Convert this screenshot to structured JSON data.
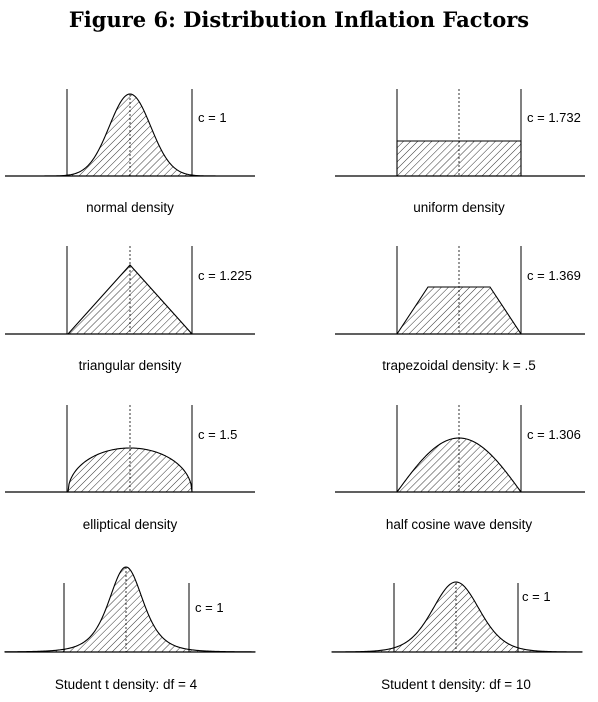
{
  "title": "Figure 6: Distribution Inflation Factors",
  "panels": [
    {
      "id": "normal",
      "type": "normal",
      "caption": "normal density",
      "c_label": "c = 1"
    },
    {
      "id": "uniform",
      "type": "uniform",
      "caption": "uniform density",
      "c_label": "c = 1.732"
    },
    {
      "id": "triangular",
      "type": "triangular",
      "caption": "triangular density",
      "c_label": "c = 1.225"
    },
    {
      "id": "trapezoidal",
      "type": "trapezoidal",
      "caption": "trapezoidal density: k = .5",
      "c_label": "c = 1.369"
    },
    {
      "id": "elliptical",
      "type": "elliptical",
      "caption": "elliptical density",
      "c_label": "c = 1.5"
    },
    {
      "id": "halfcosine",
      "type": "halfcosine",
      "caption": "half cosine wave density",
      "c_label": "c = 1.306"
    },
    {
      "id": "t4",
      "type": "t",
      "df": 4,
      "caption": "Student t density:   df = 4",
      "c_label": "c =  1"
    },
    {
      "id": "t10",
      "type": "t",
      "df": 10,
      "caption": "Student t density:   df = 10",
      "c_label": "c =  1"
    }
  ]
}
